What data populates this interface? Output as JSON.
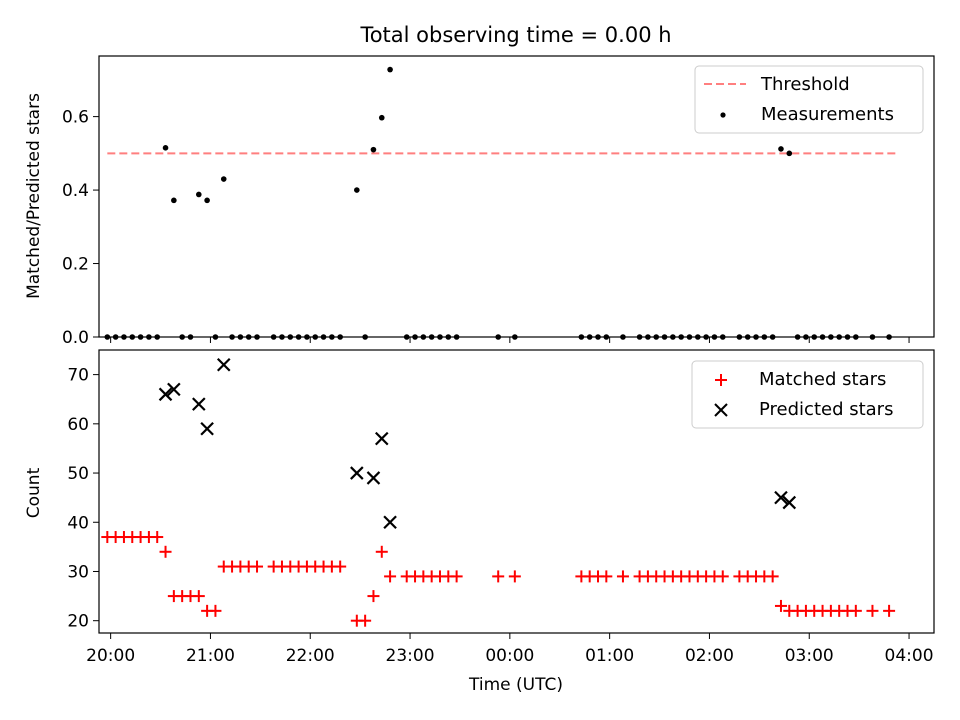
{
  "chart_data": [
    {
      "type": "scatter",
      "title": "Total observing time = 0.00 h",
      "xlabel": "",
      "ylabel": "Matched/Predicted stars",
      "ylim": [
        0,
        0.765
      ],
      "yticks": [
        0.0,
        0.2,
        0.4,
        0.6
      ],
      "ytick_labels": [
        "0.0",
        "0.2",
        "0.4",
        "0.6"
      ],
      "xlim": [
        "19:53",
        "04:15"
      ],
      "xticks": [
        "20:00",
        "21:00",
        "22:00",
        "23:00",
        "00:00",
        "01:00",
        "02:00",
        "03:00",
        "04:00"
      ],
      "threshold": {
        "name": "Threshold",
        "value": 0.5,
        "x_range": [
          "19:58",
          "03:54"
        ],
        "color": "#ff7f7f",
        "dash": "dashed"
      },
      "series": [
        {
          "name": "Measurements",
          "color": "#000000",
          "marker": "dot",
          "points": [
            [
              "19:58",
              0
            ],
            [
              "20:03",
              0
            ],
            [
              "20:08",
              0
            ],
            [
              "20:13",
              0
            ],
            [
              "20:18",
              0
            ],
            [
              "20:23",
              0
            ],
            [
              "20:28",
              0
            ],
            [
              "20:33",
              0.515
            ],
            [
              "20:38",
              0.372
            ],
            [
              "20:43",
              0
            ],
            [
              "20:48",
              0
            ],
            [
              "20:53",
              0.388
            ],
            [
              "20:58",
              0.372
            ],
            [
              "21:03",
              0
            ],
            [
              "21:08",
              0.43
            ],
            [
              "21:13",
              0
            ],
            [
              "21:18",
              0
            ],
            [
              "21:23",
              0
            ],
            [
              "21:28",
              0
            ],
            [
              "21:38",
              0
            ],
            [
              "21:43",
              0
            ],
            [
              "21:48",
              0
            ],
            [
              "21:53",
              0
            ],
            [
              "21:58",
              0
            ],
            [
              "22:03",
              0
            ],
            [
              "22:08",
              0
            ],
            [
              "22:13",
              0
            ],
            [
              "22:18",
              0
            ],
            [
              "22:28",
              0.4
            ],
            [
              "22:33",
              0
            ],
            [
              "22:38",
              0.51
            ],
            [
              "22:43",
              0.597
            ],
            [
              "22:48",
              0.728
            ],
            [
              "22:58",
              0
            ],
            [
              "23:03",
              0
            ],
            [
              "23:08",
              0
            ],
            [
              "23:13",
              0
            ],
            [
              "23:18",
              0
            ],
            [
              "23:23",
              0
            ],
            [
              "23:28",
              0
            ],
            [
              "23:53",
              0
            ],
            [
              "00:03",
              0
            ],
            [
              "00:43",
              0
            ],
            [
              "00:48",
              0
            ],
            [
              "00:53",
              0
            ],
            [
              "00:58",
              0
            ],
            [
              "01:08",
              0
            ],
            [
              "01:18",
              0
            ],
            [
              "01:23",
              0
            ],
            [
              "01:28",
              0
            ],
            [
              "01:33",
              0
            ],
            [
              "01:38",
              0
            ],
            [
              "01:43",
              0
            ],
            [
              "01:48",
              0
            ],
            [
              "01:53",
              0
            ],
            [
              "01:58",
              0
            ],
            [
              "02:03",
              0
            ],
            [
              "02:08",
              0
            ],
            [
              "02:18",
              0
            ],
            [
              "02:23",
              0
            ],
            [
              "02:28",
              0
            ],
            [
              "02:33",
              0
            ],
            [
              "02:38",
              0
            ],
            [
              "02:43",
              0.512
            ],
            [
              "02:48",
              0.5
            ],
            [
              "02:53",
              0
            ],
            [
              "02:58",
              0
            ],
            [
              "03:03",
              0
            ],
            [
              "03:08",
              0
            ],
            [
              "03:13",
              0
            ],
            [
              "03:18",
              0
            ],
            [
              "03:23",
              0
            ],
            [
              "03:28",
              0
            ],
            [
              "03:38",
              0
            ],
            [
              "03:48",
              0
            ]
          ]
        }
      ],
      "legend": {
        "position": "top-right",
        "entries": [
          "Threshold",
          "Measurements"
        ]
      }
    },
    {
      "type": "scatter",
      "title": "",
      "xlabel": "Time (UTC)",
      "ylabel": "Count",
      "ylim": [
        17.5,
        75
      ],
      "yticks": [
        20,
        30,
        40,
        50,
        60,
        70
      ],
      "ytick_labels": [
        "20",
        "30",
        "40",
        "50",
        "60",
        "70"
      ],
      "xlim": [
        "19:53",
        "04:15"
      ],
      "xticks": [
        "20:00",
        "21:00",
        "22:00",
        "23:00",
        "00:00",
        "01:00",
        "02:00",
        "03:00",
        "04:00"
      ],
      "xtick_labels": [
        "20:00",
        "21:00",
        "22:00",
        "23:00",
        "00:00",
        "01:00",
        "02:00",
        "03:00",
        "04:00"
      ],
      "series": [
        {
          "name": "Matched stars",
          "color": "#ff0000",
          "marker": "plus",
          "points": [
            [
              "19:58",
              37
            ],
            [
              "20:03",
              37
            ],
            [
              "20:08",
              37
            ],
            [
              "20:13",
              37
            ],
            [
              "20:18",
              37
            ],
            [
              "20:23",
              37
            ],
            [
              "20:28",
              37
            ],
            [
              "20:33",
              34
            ],
            [
              "20:38",
              25
            ],
            [
              "20:43",
              25
            ],
            [
              "20:48",
              25
            ],
            [
              "20:53",
              25
            ],
            [
              "20:58",
              22
            ],
            [
              "21:03",
              22
            ],
            [
              "21:08",
              31
            ],
            [
              "21:13",
              31
            ],
            [
              "21:18",
              31
            ],
            [
              "21:23",
              31
            ],
            [
              "21:28",
              31
            ],
            [
              "21:38",
              31
            ],
            [
              "21:43",
              31
            ],
            [
              "21:48",
              31
            ],
            [
              "21:53",
              31
            ],
            [
              "21:58",
              31
            ],
            [
              "22:03",
              31
            ],
            [
              "22:08",
              31
            ],
            [
              "22:13",
              31
            ],
            [
              "22:18",
              31
            ],
            [
              "22:28",
              20
            ],
            [
              "22:33",
              20
            ],
            [
              "22:38",
              25
            ],
            [
              "22:43",
              34
            ],
            [
              "22:48",
              29
            ],
            [
              "22:58",
              29
            ],
            [
              "23:03",
              29
            ],
            [
              "23:08",
              29
            ],
            [
              "23:13",
              29
            ],
            [
              "23:18",
              29
            ],
            [
              "23:23",
              29
            ],
            [
              "23:28",
              29
            ],
            [
              "23:53",
              29
            ],
            [
              "00:03",
              29
            ],
            [
              "00:43",
              29
            ],
            [
              "00:48",
              29
            ],
            [
              "00:53",
              29
            ],
            [
              "00:58",
              29
            ],
            [
              "01:08",
              29
            ],
            [
              "01:18",
              29
            ],
            [
              "01:23",
              29
            ],
            [
              "01:28",
              29
            ],
            [
              "01:33",
              29
            ],
            [
              "01:38",
              29
            ],
            [
              "01:43",
              29
            ],
            [
              "01:48",
              29
            ],
            [
              "01:53",
              29
            ],
            [
              "01:58",
              29
            ],
            [
              "02:03",
              29
            ],
            [
              "02:08",
              29
            ],
            [
              "02:18",
              29
            ],
            [
              "02:23",
              29
            ],
            [
              "02:28",
              29
            ],
            [
              "02:33",
              29
            ],
            [
              "02:38",
              29
            ],
            [
              "02:43",
              23
            ],
            [
              "02:48",
              22
            ],
            [
              "02:53",
              22
            ],
            [
              "02:58",
              22
            ],
            [
              "03:03",
              22
            ],
            [
              "03:08",
              22
            ],
            [
              "03:13",
              22
            ],
            [
              "03:18",
              22
            ],
            [
              "03:23",
              22
            ],
            [
              "03:28",
              22
            ],
            [
              "03:38",
              22
            ],
            [
              "03:48",
              22
            ]
          ]
        },
        {
          "name": "Predicted stars",
          "color": "#000000",
          "marker": "x",
          "points": [
            [
              "20:33",
              66
            ],
            [
              "20:38",
              67
            ],
            [
              "20:53",
              64
            ],
            [
              "20:58",
              59
            ],
            [
              "21:08",
              72
            ],
            [
              "22:28",
              50
            ],
            [
              "22:38",
              49
            ],
            [
              "22:43",
              57
            ],
            [
              "22:48",
              40
            ],
            [
              "02:43",
              45
            ],
            [
              "02:48",
              44
            ]
          ]
        }
      ],
      "legend": {
        "position": "top-right",
        "entries": [
          "Matched stars",
          "Predicted stars"
        ]
      }
    }
  ]
}
